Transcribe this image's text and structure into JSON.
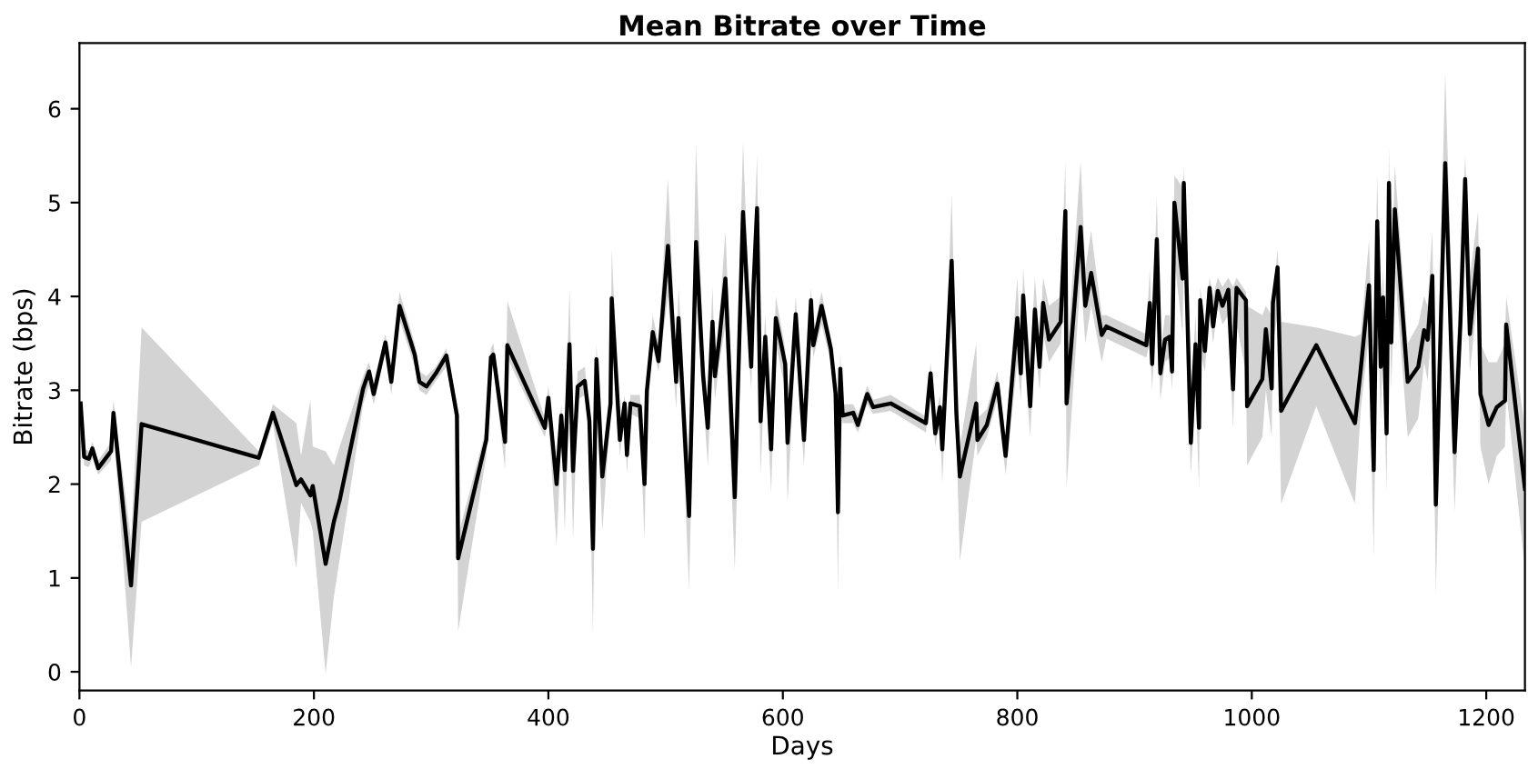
{
  "chart_data": {
    "type": "line",
    "title": "Mean Bitrate over Time",
    "xlabel": "Days",
    "ylabel": "Bitrate (bps)",
    "xlim": [
      0,
      1233
    ],
    "ylim": [
      -0.2,
      6.7
    ],
    "xticks": [
      0,
      200,
      400,
      600,
      800,
      1000,
      1200
    ],
    "yticks": [
      0,
      1,
      2,
      3,
      4,
      5,
      6
    ],
    "grid": false,
    "series": [
      {
        "color": "#000000",
        "x": [
          1,
          4,
          8,
          11,
          16,
          27,
          29,
          44,
          53,
          153,
          165,
          185,
          189,
          197,
          199,
          210,
          217,
          222,
          242,
          247,
          251,
          261,
          266,
          273,
          286,
          290,
          296,
          304,
          313,
          322,
          323,
          347,
          351,
          353,
          363,
          365,
          397,
          400,
          407,
          411,
          414,
          418,
          421,
          425,
          431,
          435,
          438,
          441,
          446,
          453,
          454,
          461,
          465,
          467,
          470,
          478,
          482,
          484,
          489,
          494,
          502,
          509,
          511,
          520,
          526,
          532,
          536,
          540,
          542,
          546,
          551,
          559,
          566,
          573,
          575,
          578,
          581,
          585,
          590,
          594,
          602,
          604,
          611,
          618,
          624,
          626,
          633,
          641,
          645,
          647,
          649,
          651,
          660,
          664,
          672,
          677,
          692,
          722,
          726,
          730,
          734,
          736,
          739,
          744,
          748,
          751,
          765,
          766,
          774,
          783,
          790,
          800,
          803,
          805,
          811,
          815,
          819,
          822,
          827,
          837,
          841,
          842,
          854,
          858,
          863,
          872,
          876,
          910,
          913,
          915,
          919,
          922,
          926,
          930,
          932,
          934,
          941,
          942,
          948,
          952,
          955,
          956,
          960,
          964,
          967,
          971,
          975,
          980,
          984,
          987,
          995,
          996,
          1009,
          1012,
          1017,
          1018,
          1022,
          1025,
          1055,
          1088,
          1093,
          1100,
          1104,
          1107,
          1110,
          1112,
          1115,
          1117,
          1119,
          1122,
          1133,
          1142,
          1147,
          1150,
          1154,
          1157,
          1165,
          1173,
          1178,
          1182,
          1186,
          1193,
          1195,
          1202,
          1209,
          1216,
          1217,
          1233
        ],
        "values": [
          2.86,
          2.29,
          2.27,
          2.38,
          2.17,
          2.35,
          2.76,
          0.92,
          2.64,
          2.28,
          2.76,
          1.99,
          2.05,
          1.88,
          1.98,
          1.15,
          1.6,
          1.83,
          3.02,
          3.2,
          2.96,
          3.51,
          3.09,
          3.9,
          3.38,
          3.09,
          3.04,
          3.18,
          3.37,
          2.73,
          1.21,
          2.47,
          3.35,
          3.38,
          2.45,
          3.48,
          2.6,
          2.92,
          2.0,
          2.73,
          2.15,
          3.49,
          2.14,
          3.04,
          3.1,
          2.67,
          1.31,
          3.33,
          2.08,
          2.86,
          3.98,
          2.47,
          2.86,
          2.31,
          2.86,
          2.83,
          2.0,
          2.99,
          3.62,
          3.31,
          4.54,
          3.09,
          3.77,
          1.66,
          4.58,
          3.15,
          2.6,
          3.73,
          3.15,
          3.57,
          4.19,
          1.86,
          4.9,
          3.25,
          4.12,
          4.94,
          2.67,
          3.57,
          2.37,
          3.77,
          3.28,
          2.44,
          3.81,
          2.47,
          3.96,
          3.48,
          3.9,
          3.44,
          2.96,
          1.7,
          3.23,
          2.73,
          2.76,
          2.63,
          2.96,
          2.82,
          2.86,
          2.65,
          3.18,
          2.54,
          2.82,
          2.37,
          3.12,
          4.38,
          2.76,
          2.08,
          2.86,
          2.47,
          2.63,
          3.07,
          2.3,
          3.77,
          3.18,
          4.01,
          2.83,
          3.86,
          3.25,
          3.93,
          3.54,
          3.73,
          4.91,
          2.86,
          4.74,
          3.9,
          4.25,
          3.59,
          3.68,
          3.48,
          3.93,
          3.28,
          4.61,
          3.18,
          3.54,
          3.57,
          3.2,
          5.0,
          4.19,
          5.21,
          2.44,
          3.49,
          2.6,
          3.96,
          3.42,
          4.09,
          3.68,
          4.06,
          3.9,
          4.07,
          3.01,
          4.09,
          3.96,
          2.83,
          3.12,
          3.65,
          3.02,
          3.93,
          4.31,
          2.78,
          3.48,
          2.65,
          3.23,
          4.12,
          2.15,
          4.8,
          3.25,
          3.99,
          2.54,
          5.21,
          3.51,
          4.93,
          3.09,
          3.25,
          3.64,
          3.54,
          4.22,
          1.78,
          5.42,
          2.34,
          3.73,
          5.25,
          3.6,
          4.51,
          2.96,
          2.63,
          2.82,
          2.89,
          3.7,
          1.95
        ],
        "lower": [
          2.75,
          2.2,
          2.18,
          2.28,
          2.1,
          2.25,
          2.6,
          0.05,
          1.6,
          2.2,
          2.65,
          1.1,
          1.8,
          1.6,
          1.5,
          -0.02,
          0.8,
          1.2,
          2.85,
          3.05,
          2.85,
          3.4,
          2.95,
          3.75,
          3.25,
          3.0,
          2.95,
          3.1,
          3.25,
          2.6,
          0.43,
          2.3,
          3.25,
          3.25,
          2.16,
          3.35,
          2.5,
          2.7,
          1.34,
          2.5,
          1.5,
          3.1,
          1.4,
          2.9,
          2.95,
          2.5,
          0.4,
          3.0,
          1.5,
          2.75,
          3.5,
          2.3,
          2.75,
          2.1,
          2.75,
          2.7,
          1.4,
          2.85,
          3.45,
          3.2,
          4.0,
          2.8,
          3.5,
          0.89,
          4.0,
          2.9,
          2.2,
          3.4,
          2.9,
          3.3,
          3.7,
          1.08,
          4.3,
          3.0,
          3.8,
          4.5,
          2.1,
          3.3,
          1.9,
          3.5,
          3.0,
          1.8,
          3.5,
          2.2,
          3.7,
          3.35,
          3.7,
          3.3,
          2.8,
          0.85,
          2.9,
          2.65,
          2.65,
          2.55,
          2.85,
          2.75,
          2.78,
          2.55,
          3.0,
          2.4,
          2.7,
          2.0,
          2.9,
          3.8,
          2.5,
          1.18,
          2.5,
          2.3,
          2.5,
          2.9,
          2.1,
          3.3,
          2.9,
          3.5,
          2.5,
          3.5,
          3.0,
          3.6,
          3.3,
          3.5,
          4.3,
          1.96,
          4.2,
          3.5,
          3.9,
          3.3,
          3.55,
          3.35,
          3.5,
          3.0,
          4.0,
          2.9,
          3.3,
          3.35,
          3.0,
          4.4,
          3.6,
          4.5,
          2.1,
          3.0,
          1.95,
          3.4,
          3.2,
          3.9,
          3.5,
          3.9,
          3.7,
          3.8,
          2.6,
          3.7,
          3.2,
          2.2,
          2.5,
          3.0,
          2.5,
          3.5,
          3.8,
          1.79,
          2.83,
          1.79,
          2.8,
          3.6,
          1.21,
          4.0,
          2.7,
          3.5,
          1.9,
          4.3,
          3.0,
          4.3,
          2.5,
          2.7,
          3.3,
          3.1,
          3.8,
          0.82,
          4.9,
          1.7,
          3.3,
          4.6,
          3.2,
          4.0,
          2.4,
          2.0,
          2.3,
          2.4,
          3.0,
          1.09
        ],
        "upper": [
          2.95,
          2.38,
          2.35,
          2.45,
          2.25,
          2.45,
          2.9,
          1.4,
          3.67,
          2.35,
          2.85,
          2.65,
          2.3,
          2.9,
          2.4,
          2.35,
          2.2,
          2.4,
          3.15,
          3.3,
          3.1,
          3.6,
          3.2,
          4.05,
          3.5,
          3.2,
          3.15,
          3.25,
          3.45,
          2.85,
          1.45,
          2.6,
          3.45,
          3.5,
          2.6,
          3.95,
          2.7,
          3.05,
          2.2,
          2.85,
          2.4,
          4.09,
          2.4,
          3.2,
          3.25,
          2.8,
          1.7,
          3.5,
          2.3,
          2.95,
          4.51,
          2.6,
          2.95,
          2.5,
          2.95,
          2.95,
          2.3,
          3.1,
          3.8,
          3.5,
          5.26,
          3.3,
          4.1,
          2.2,
          5.61,
          3.4,
          2.9,
          4.1,
          3.3,
          3.8,
          4.7,
          2.3,
          5.64,
          3.4,
          4.5,
          5.5,
          2.9,
          3.8,
          2.6,
          4.0,
          3.45,
          2.7,
          4.0,
          2.7,
          4.1,
          3.6,
          4.05,
          3.55,
          3.1,
          2.2,
          3.4,
          2.85,
          2.85,
          2.75,
          3.05,
          2.9,
          2.95,
          2.72,
          3.3,
          2.7,
          2.95,
          2.6,
          3.3,
          5.09,
          3.1,
          2.4,
          3.5,
          2.7,
          2.8,
          3.2,
          2.5,
          4.2,
          3.4,
          4.3,
          3.3,
          4.2,
          3.5,
          4.2,
          3.9,
          4.0,
          5.45,
          3.3,
          5.44,
          4.3,
          4.7,
          3.8,
          3.8,
          3.6,
          4.3,
          3.5,
          5.08,
          3.4,
          3.8,
          3.8,
          3.4,
          5.29,
          5.16,
          5.36,
          2.9,
          3.8,
          2.9,
          4.1,
          3.7,
          4.2,
          4.0,
          4.2,
          4.1,
          4.2,
          4.1,
          4.2,
          4.05,
          3.9,
          3.8,
          3.9,
          3.8,
          3.95,
          4.5,
          3.73,
          3.67,
          3.57,
          3.6,
          4.6,
          3.0,
          5.3,
          3.6,
          4.3,
          3.0,
          5.6,
          4.0,
          5.4,
          3.5,
          3.7,
          4.0,
          3.9,
          4.7,
          2.4,
          6.39,
          3.0,
          4.3,
          5.5,
          4.2,
          4.9,
          3.5,
          3.3,
          3.3,
          3.5,
          4.0,
          2.6
        ]
      }
    ]
  }
}
